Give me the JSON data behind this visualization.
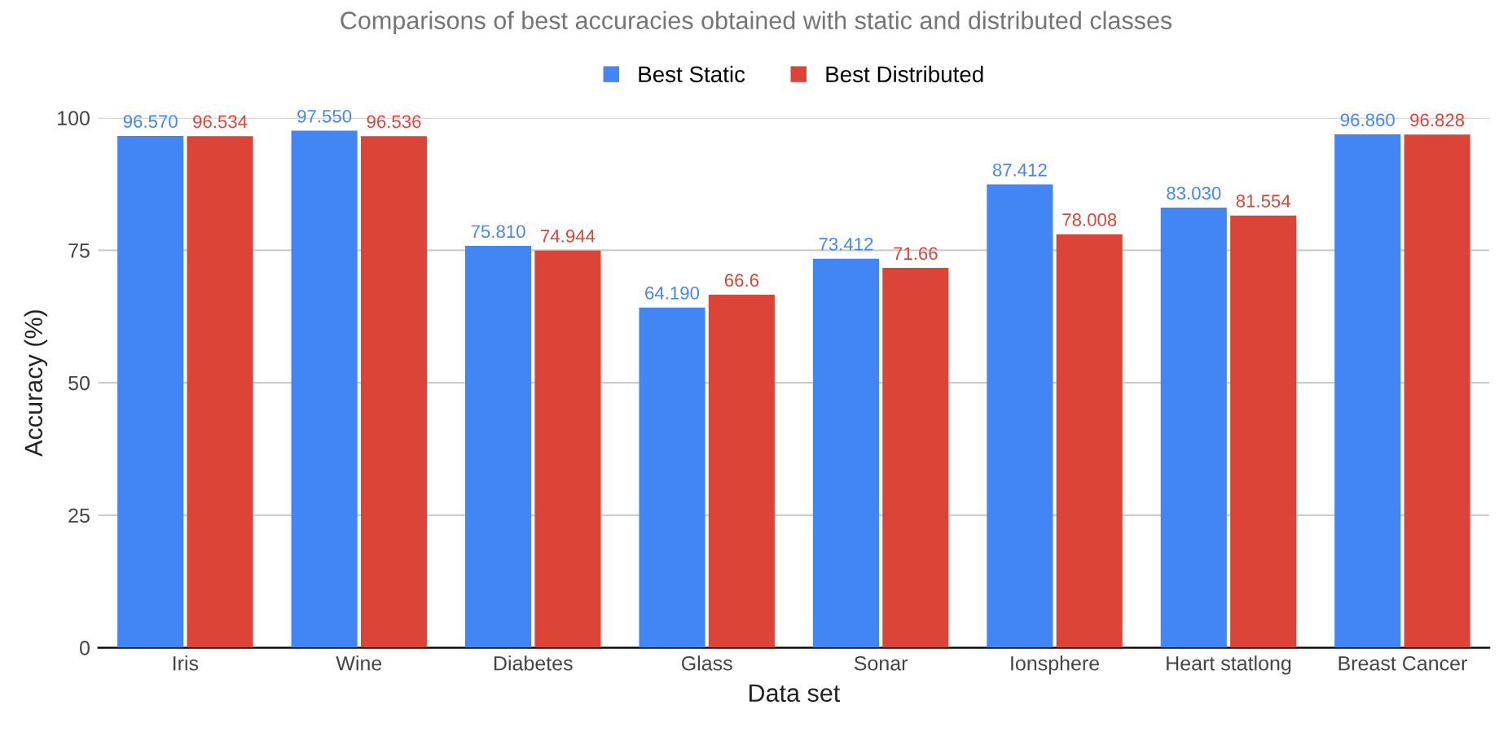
{
  "chart_data": {
    "type": "bar",
    "title": "Comparisons of best accuracies obtained with static and distributed classes",
    "xlabel": "Data set",
    "ylabel": "Accuracy (%)",
    "categories": [
      "Iris",
      "Wine",
      "Diabetes",
      "Glass",
      "Sonar",
      "Ionsphere",
      "Heart statlong",
      "Breast Cancer"
    ],
    "series": [
      {
        "name": "Best Static",
        "color": "#4285f4",
        "values": [
          96.57,
          97.55,
          75.81,
          64.19,
          73.412,
          87.412,
          83.03,
          96.86
        ],
        "value_labels": [
          "96.570",
          "97.550",
          "75.810",
          "64.190",
          "73.412",
          "87.412",
          "83.030",
          "96.860"
        ]
      },
      {
        "name": "Best Distributed",
        "color": "#db4437",
        "values": [
          96.534,
          96.536,
          74.944,
          66.6,
          71.66,
          78.008,
          81.554,
          96.828
        ],
        "value_labels": [
          "96.534",
          "96.536",
          "74.944",
          "66.6",
          "71.66",
          "78.008",
          "81.554",
          "96.828"
        ]
      }
    ],
    "ylim": [
      0,
      100
    ],
    "yticks": [
      0,
      25,
      50,
      75,
      100
    ],
    "grid": "y",
    "legend": "top"
  }
}
